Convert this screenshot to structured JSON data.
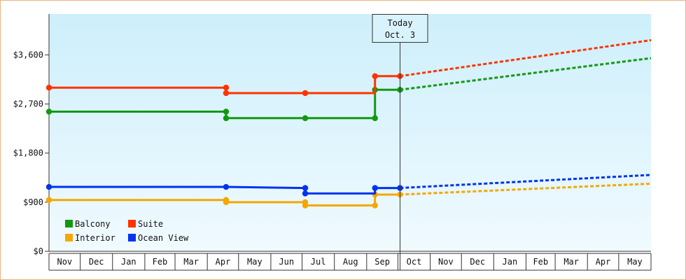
{
  "chart_data": {
    "type": "line",
    "title": "",
    "xlabel": "",
    "ylabel": "",
    "ylim": [
      0,
      4350
    ],
    "y_ticks": [
      {
        "value": 0,
        "label": "$0"
      },
      {
        "value": 900,
        "label": "$900"
      },
      {
        "value": 1800,
        "label": "$1,800"
      },
      {
        "value": 2700,
        "label": "$2,700"
      },
      {
        "value": 3600,
        "label": "$3,600"
      }
    ],
    "x_months": [
      "Nov",
      "Dec",
      "Jan",
      "Feb",
      "Mar",
      "Apr",
      "May",
      "Jun",
      "Jul",
      "Aug",
      "Sep",
      "Oct",
      "Nov",
      "Dec",
      "Jan",
      "Feb",
      "Mar",
      "Apr",
      "May"
    ],
    "x_domain": [
      "2023-11-01",
      "2025-06-01"
    ],
    "today": {
      "date": "2024-10-03",
      "line1": "Today",
      "line2": "Oct. 3"
    },
    "grid": false,
    "legend_position": "bottom-left",
    "background_gradient": [
      "#cdeffb",
      "#f0faff"
    ],
    "series": [
      {
        "name": "Balcony",
        "color": "#119911",
        "history": [
          [
            "2023-11-01",
            2560
          ],
          [
            "2024-04-19",
            2560
          ],
          [
            "2024-04-19",
            2440
          ],
          [
            "2024-07-04",
            2440
          ],
          [
            "2024-09-09",
            2440
          ],
          [
            "2024-09-09",
            2960
          ],
          [
            "2024-10-03",
            2960
          ]
        ],
        "markers": [
          [
            "2023-11-01",
            2560
          ],
          [
            "2024-04-19",
            2560
          ],
          [
            "2024-04-19",
            2440
          ],
          [
            "2024-07-04",
            2440
          ],
          [
            "2024-09-09",
            2440
          ],
          [
            "2024-09-09",
            2960
          ],
          [
            "2024-10-03",
            2960
          ]
        ],
        "forecast": [
          [
            "2024-10-03",
            2960
          ],
          [
            "2025-06-01",
            3540
          ]
        ]
      },
      {
        "name": "Suite",
        "color": "#ff3300",
        "history": [
          [
            "2023-11-01",
            3000
          ],
          [
            "2024-04-19",
            3000
          ],
          [
            "2024-04-19",
            2900
          ],
          [
            "2024-07-04",
            2900
          ],
          [
            "2024-09-09",
            2900
          ],
          [
            "2024-09-09",
            3210
          ],
          [
            "2024-10-03",
            3210
          ]
        ],
        "markers": [
          [
            "2023-11-01",
            3000
          ],
          [
            "2024-04-19",
            3000
          ],
          [
            "2024-04-19",
            2900
          ],
          [
            "2024-07-04",
            2900
          ],
          [
            "2024-09-09",
            3210
          ],
          [
            "2024-10-03",
            3210
          ]
        ],
        "forecast": [
          [
            "2024-10-03",
            3210
          ],
          [
            "2025-06-01",
            3870
          ]
        ]
      },
      {
        "name": "Interior",
        "color": "#f5a700",
        "history": [
          [
            "2023-11-01",
            940
          ],
          [
            "2024-04-19",
            940
          ],
          [
            "2024-04-19",
            900
          ],
          [
            "2024-07-04",
            900
          ],
          [
            "2024-07-04",
            840
          ],
          [
            "2024-09-09",
            840
          ],
          [
            "2024-09-09",
            1040
          ],
          [
            "2024-10-03",
            1040
          ]
        ],
        "markers": [
          [
            "2023-11-01",
            940
          ],
          [
            "2024-04-19",
            940
          ],
          [
            "2024-04-19",
            900
          ],
          [
            "2024-07-04",
            900
          ],
          [
            "2024-07-04",
            840
          ],
          [
            "2024-09-09",
            840
          ],
          [
            "2024-09-09",
            1040
          ],
          [
            "2024-10-03",
            1040
          ]
        ],
        "forecast": [
          [
            "2024-10-03",
            1040
          ],
          [
            "2025-06-01",
            1240
          ]
        ]
      },
      {
        "name": "Ocean View",
        "color": "#0033ee",
        "history": [
          [
            "2023-11-01",
            1180
          ],
          [
            "2024-04-19",
            1180
          ],
          [
            "2024-07-04",
            1160
          ],
          [
            "2024-07-04",
            1060
          ],
          [
            "2024-09-09",
            1060
          ],
          [
            "2024-09-09",
            1160
          ],
          [
            "2024-10-03",
            1160
          ]
        ],
        "markers": [
          [
            "2023-11-01",
            1180
          ],
          [
            "2024-04-19",
            1180
          ],
          [
            "2024-07-04",
            1160
          ],
          [
            "2024-07-04",
            1060
          ],
          [
            "2024-09-09",
            1160
          ],
          [
            "2024-10-03",
            1160
          ]
        ],
        "forecast": [
          [
            "2024-10-03",
            1160
          ],
          [
            "2025-06-01",
            1400
          ]
        ]
      }
    ]
  }
}
